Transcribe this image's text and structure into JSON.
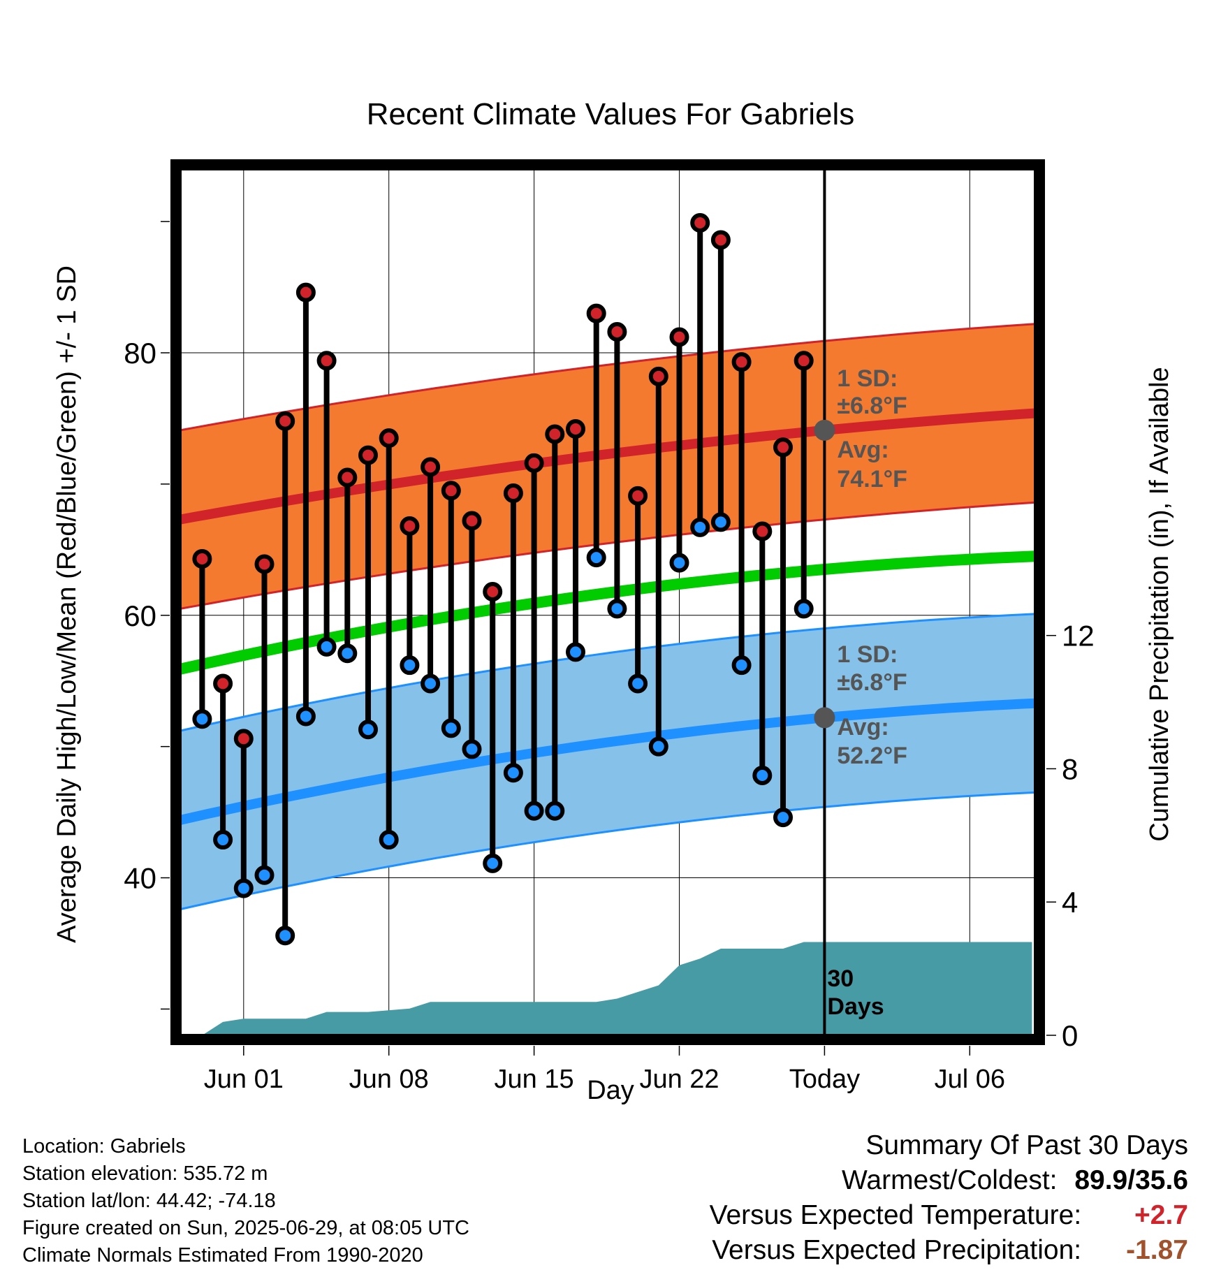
{
  "chart_data": {
    "type": "line",
    "title": "Recent Climate Values For Gabriels",
    "xlabel": "Day",
    "ylabel_left": "Average Daily High/Low/Mean (Red/Blue/Green) +/- 1 SD",
    "ylabel_right": "Cumulative Precipitation (in), If Available",
    "x_ticks": [
      "Jun 01",
      "Jun 08",
      "Jun 15",
      "Jun 22",
      "Today",
      "Jul 06"
    ],
    "ylim_left": [
      28,
      94
    ],
    "left_ticks": [
      40,
      60,
      80
    ],
    "right_ticks": [
      0,
      4,
      8,
      12
    ],
    "ylim_right": [
      0,
      26
    ],
    "today_label": "30 Days",
    "grid": true,
    "days": [
      "May 30",
      "May 31",
      "Jun 01",
      "Jun 02",
      "Jun 03",
      "Jun 04",
      "Jun 05",
      "Jun 06",
      "Jun 07",
      "Jun 08",
      "Jun 09",
      "Jun 10",
      "Jun 11",
      "Jun 12",
      "Jun 13",
      "Jun 14",
      "Jun 15",
      "Jun 16",
      "Jun 17",
      "Jun 18",
      "Jun 19",
      "Jun 20",
      "Jun 21",
      "Jun 22",
      "Jun 23",
      "Jun 24",
      "Jun 25",
      "Jun 26",
      "Jun 27",
      "Jun 28"
    ],
    "series": [
      {
        "name": "High",
        "values": [
          64.3,
          54.8,
          50.6,
          63.9,
          74.8,
          84.6,
          79.4,
          70.5,
          72.2,
          73.5,
          66.8,
          71.3,
          69.5,
          67.2,
          61.8,
          69.3,
          71.6,
          73.8,
          74.2,
          83.0,
          81.6,
          69.1,
          78.2,
          81.2,
          89.9,
          88.6,
          79.3,
          66.4,
          72.8,
          79.4
        ]
      },
      {
        "name": "Low",
        "values": [
          52.1,
          42.9,
          39.2,
          40.2,
          35.6,
          52.3,
          57.6,
          57.1,
          51.3,
          42.9,
          56.2,
          54.8,
          51.4,
          49.8,
          41.1,
          48.0,
          45.1,
          45.1,
          57.2,
          64.4,
          60.5,
          54.8,
          50.0,
          64.0,
          66.7,
          67.1,
          56.2,
          47.8,
          44.6,
          60.5
        ]
      }
    ],
    "normals": {
      "high_avg": {
        "start": 67.3,
        "today": 74.1,
        "end": 75.4
      },
      "high_sd": 6.8,
      "low_avg": {
        "start": 44.4,
        "today": 52.2,
        "end": 53.3
      },
      "low_sd": 6.8,
      "mean_avg": {
        "start": 55.9,
        "today": 63.5,
        "end": 64.5
      }
    },
    "precip_cumulative": {
      "x": [
        "May 30",
        "May 31",
        "Jun 01",
        "Jun 04",
        "Jun 05",
        "Jun 07",
        "Jun 09",
        "Jun 10",
        "Jun 12",
        "Jun 18",
        "Jun 19",
        "Jun 20",
        "Jun 21",
        "Jun 22",
        "Jun 23",
        "Jun 24",
        "Jun 27",
        "Jun 28",
        "Jul 09"
      ],
      "values": [
        0.0,
        0.4,
        0.5,
        0.5,
        0.7,
        0.7,
        0.8,
        1.0,
        1.0,
        1.0,
        1.1,
        1.3,
        1.5,
        2.1,
        2.3,
        2.6,
        2.6,
        2.8,
        2.8
      ]
    },
    "annotations": {
      "high_sd_label": "1 SD:",
      "high_sd_value": "±6.8°F",
      "high_avg_label": "Avg:",
      "high_avg_value": "74.1°F",
      "low_sd_label": "1 SD:",
      "low_sd_value": "±6.8°F",
      "low_avg_label": "Avg:",
      "low_avg_value": "52.2°F"
    },
    "colors": {
      "high_band": "#f47a2f",
      "high_line": "#d0232a",
      "low_band": "#85c1e9",
      "low_line": "#1e90ff",
      "mean_line": "#00cc00",
      "precip": "#479ba4",
      "high_dot": "#d0232a",
      "low_dot": "#1e90ff",
      "annotation": "#555555"
    }
  },
  "footer": {
    "location": "Location: Gabriels",
    "elevation": "Station elevation: 535.72 m",
    "latlon": "Station lat/lon: 44.42; -74.18",
    "created": "Figure created on Sun, 2025-06-29, at 08:05 UTC",
    "normals": "Climate Normals Estimated From 1990-2020"
  },
  "summary": {
    "title": "Summary Of Past 30 Days",
    "warmest_label": "Warmest/Coldest:",
    "warmest_value": "89.9/35.6",
    "temp_label": "Versus Expected Temperature:",
    "temp_value": "+2.7",
    "precip_label": "Versus Expected Precipitation:",
    "precip_value": "-1.87"
  }
}
